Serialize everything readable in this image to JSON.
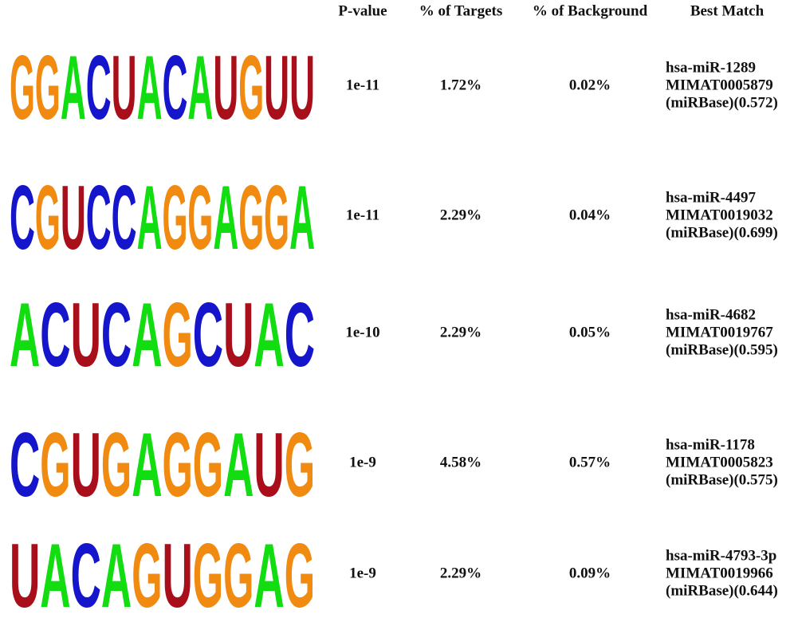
{
  "header": {
    "columns": [
      "P-value",
      "% of Targets",
      "% of Background",
      "Best Match"
    ]
  },
  "rows": [
    {
      "motif": [
        "G",
        "G",
        "A",
        "C",
        "U",
        "A",
        "C",
        "A",
        "U",
        "G",
        "U",
        "U"
      ],
      "p_value": "1e-11",
      "targets": "1.72%",
      "background": "0.02%",
      "best_match": [
        "hsa-miR-1289",
        "MIMAT0005879",
        "(miRBase)(0.572)"
      ]
    },
    {
      "motif": [
        "C",
        "G",
        "U",
        "C",
        "C",
        "A",
        "G",
        "G",
        "A",
        "G",
        "G",
        "A"
      ],
      "p_value": "1e-11",
      "targets": "2.29%",
      "background": "0.04%",
      "best_match": [
        "hsa-miR-4497",
        "MIMAT0019032",
        "(miRBase)(0.699)"
      ]
    },
    {
      "motif": [
        "A",
        "C",
        "U",
        "C",
        "A",
        "G",
        "C",
        "U",
        "A",
        "C"
      ],
      "p_value": "1e-10",
      "targets": "2.29%",
      "background": "0.05%",
      "best_match": [
        "hsa-miR-4682",
        "MIMAT0019767",
        "(miRBase)(0.595)"
      ]
    },
    {
      "motif": [
        "C",
        "G",
        "U",
        "G",
        "A",
        "G",
        "G",
        "A",
        "U",
        "G"
      ],
      "p_value": "1e-9",
      "targets": "4.58%",
      "background": "0.57%",
      "best_match": [
        "hsa-miR-1178",
        "MIMAT0005823",
        "(miRBase)(0.575)"
      ]
    },
    {
      "motif": [
        "U",
        "A",
        "C",
        "A",
        "G",
        "U",
        "G",
        "G",
        "A",
        "G"
      ],
      "p_value": "1e-9",
      "targets": "2.29%",
      "background": "0.09%",
      "best_match": [
        "hsa-miR-4793-3p",
        "MIMAT0019966",
        "(miRBase)(0.644)"
      ]
    }
  ]
}
